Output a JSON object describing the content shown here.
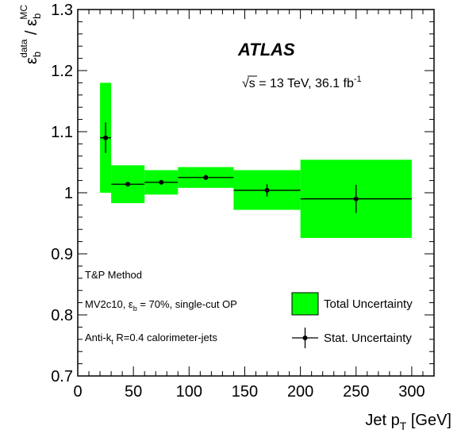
{
  "chart_data": {
    "type": "scatter",
    "experiment_label": "ATLAS",
    "energy_label": {
      "sqrt": "√s",
      "rest": " = 13 TeV, 36.1 fb",
      "sup": "-1"
    },
    "xlabel": {
      "main": "Jet p",
      "sub": "T",
      "unit": " [GeV]"
    },
    "ylabel": {
      "eps": "ε",
      "sub_num": "b",
      "sup_num": "data",
      "slash": " / ",
      "sub_den": "b",
      "sup_den": "MC"
    },
    "xlim": [
      0,
      320
    ],
    "ylim": [
      0.7,
      1.3
    ],
    "x_ticks": [
      0,
      50,
      100,
      150,
      200,
      250,
      300
    ],
    "y_ticks": [
      0.7,
      0.8,
      0.9,
      1.0,
      1.1,
      1.2,
      1.3
    ],
    "y_tick_labels": [
      "0.7",
      "0.8",
      "0.9",
      "1",
      "1.1",
      "1.2",
      "1.3"
    ],
    "points": [
      {
        "x": 25,
        "xlow": 20,
        "xhigh": 30,
        "y": 1.09,
        "stat": 0.025,
        "tot_low": 1.0,
        "tot_high": 1.18
      },
      {
        "x": 45,
        "xlow": 30,
        "xhigh": 60,
        "y": 1.014,
        "stat": 0.003,
        "tot_low": 0.983,
        "tot_high": 1.045
      },
      {
        "x": 75,
        "xlow": 60,
        "xhigh": 90,
        "y": 1.017,
        "stat": 0.003,
        "tot_low": 0.997,
        "tot_high": 1.037
      },
      {
        "x": 115,
        "xlow": 90,
        "xhigh": 140,
        "y": 1.025,
        "stat": 0.004,
        "tot_low": 1.008,
        "tot_high": 1.042
      },
      {
        "x": 170,
        "xlow": 140,
        "xhigh": 200,
        "y": 1.004,
        "stat": 0.01,
        "tot_low": 0.972,
        "tot_high": 1.037
      },
      {
        "x": 250,
        "xlow": 200,
        "xhigh": 300,
        "y": 0.99,
        "stat": 0.023,
        "tot_low": 0.926,
        "tot_high": 1.054
      }
    ],
    "text_labels": {
      "method": "T&P Method",
      "tagger": {
        "pre": "MV2c10, ε",
        "sub": "b",
        "post": " = 70%, single-cut OP"
      },
      "jets": {
        "pre": "Anti-k",
        "sub": "t",
        "post": " R=0.4 calorimeter-jets"
      }
    },
    "legend": {
      "total": "Total Uncertainty",
      "stat": "Stat. Uncertainty"
    },
    "colors": {
      "band": "#00ff00",
      "marker": "#000000"
    }
  }
}
